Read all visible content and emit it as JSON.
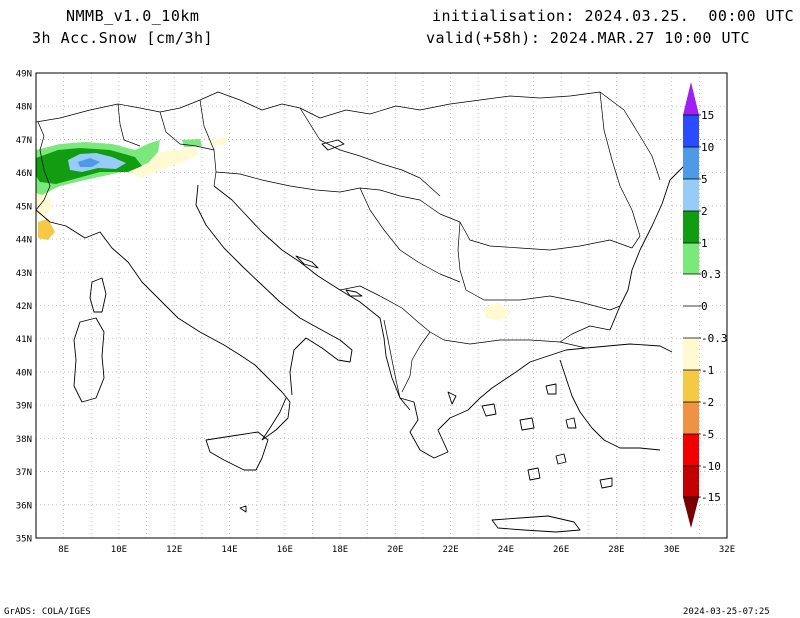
{
  "header": {
    "model": "NMMB_v1.0_10km",
    "variable": "3h Acc.Snow [cm/3h]",
    "init": "initialisation: 2024.03.25.  00:00 UTC",
    "valid": "valid(+58h): 2024.MAR.27 10:00 UTC"
  },
  "axes": {
    "lat_labels": [
      "49N",
      "48N",
      "47N",
      "46N",
      "45N",
      "44N",
      "43N",
      "42N",
      "41N",
      "40N",
      "39N",
      "38N",
      "37N",
      "36N",
      "35N"
    ],
    "lon_labels": [
      "8E",
      "10E",
      "12E",
      "14E",
      "16E",
      "18E",
      "20E",
      "22E",
      "24E",
      "26E",
      "28E",
      "30E",
      "32E"
    ]
  },
  "colorbar": {
    "labels": [
      "15",
      "10",
      "5",
      "2",
      "1",
      "0.3",
      "0",
      "-0.3",
      "-1",
      "-2",
      "-5",
      "-10",
      "-15"
    ],
    "colors": {
      "c15": "#a020f0",
      "c10": "#2b4bff",
      "c5": "#4f9ae6",
      "c2": "#96ccf7",
      "c1": "#119c11",
      "c03": "#7be87b",
      "cn03": "#fffad2",
      "cn1": "#f6c945",
      "cn2": "#ef9246",
      "cn5": "#f20000",
      "cn10": "#c20000",
      "cn15": "#780000"
    }
  },
  "footer": {
    "left": "GrADS: COLA/IGES",
    "right": "2024-03-25-07:25"
  }
}
